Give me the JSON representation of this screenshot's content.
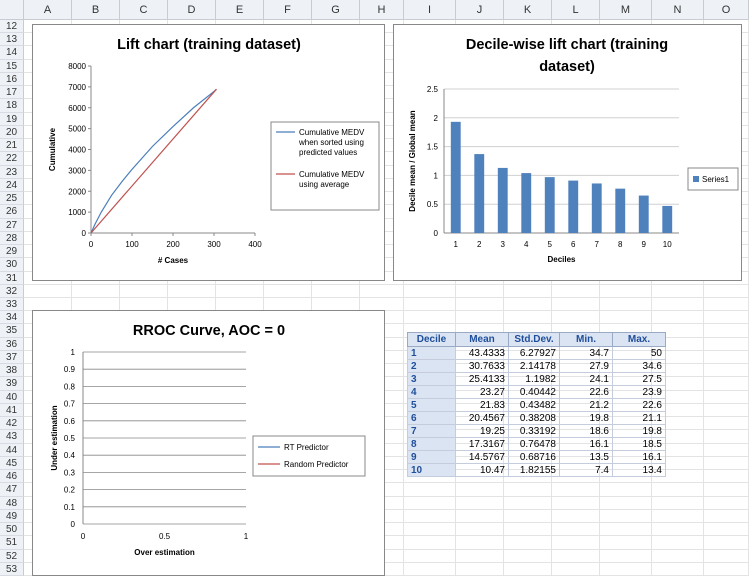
{
  "columns": [
    "A",
    "B",
    "C",
    "D",
    "E",
    "F",
    "G",
    "H",
    "I",
    "J",
    "K",
    "L",
    "M",
    "N",
    "O"
  ],
  "rows": [
    "12",
    "13",
    "14",
    "15",
    "16",
    "17",
    "18",
    "19",
    "20",
    "21",
    "22",
    "23",
    "24",
    "25",
    "26",
    "27",
    "28",
    "29",
    "30",
    "31",
    "32",
    "33",
    "34",
    "35",
    "36",
    "37",
    "38",
    "39",
    "40",
    "41",
    "42",
    "43",
    "44",
    "45",
    "46",
    "47",
    "48",
    "49",
    "50",
    "51",
    "52",
    "53"
  ],
  "colors": {
    "blue_series": "#4a7ebb",
    "red_series": "#c0504d",
    "bar": "#4f81bd",
    "table_header_bg": "#dbe4f3",
    "table_header_text": "#1f4e9a"
  },
  "chart_data": [
    {
      "type": "line",
      "title": "Lift chart (training dataset)",
      "xlabel": "# Cases",
      "ylabel": "Cumulative",
      "xlim": [
        0,
        400
      ],
      "ylim": [
        0,
        8000
      ],
      "xticks": [
        "0",
        "100",
        "200",
        "300",
        "400"
      ],
      "yticks": [
        "0",
        "1000",
        "2000",
        "3000",
        "4000",
        "5000",
        "6000",
        "7000",
        "8000"
      ],
      "legend_position": "right",
      "series": [
        {
          "name": "Cumulative MEDV when sorted using predicted values",
          "x": [
            0,
            10,
            25,
            50,
            75,
            100,
            150,
            200,
            250,
            300,
            306
          ],
          "y": [
            0,
            430,
            1000,
            1800,
            2450,
            3050,
            4150,
            5100,
            6000,
            6780,
            6890
          ]
        },
        {
          "name": "Cumulative MEDV using average",
          "x": [
            0,
            306
          ],
          "y": [
            0,
            6890
          ]
        }
      ]
    },
    {
      "type": "bar",
      "title": "Decile-wise lift chart (training dataset)",
      "xlabel": "Deciles",
      "ylabel": "Decile mean / Global mean",
      "ylim": [
        0,
        2.5
      ],
      "yticks": [
        "0",
        "0.5",
        "1",
        "1.5",
        "2",
        "2.5"
      ],
      "categories": [
        "1",
        "2",
        "3",
        "4",
        "5",
        "6",
        "7",
        "8",
        "9",
        "10"
      ],
      "legend_position": "right",
      "series": [
        {
          "name": "Series1",
          "values": [
            1.93,
            1.37,
            1.13,
            1.04,
            0.97,
            0.91,
            0.86,
            0.77,
            0.65,
            0.47
          ]
        }
      ]
    },
    {
      "type": "line",
      "title": "RROC Curve, AOC = 0",
      "xlabel": "Over estimation",
      "ylabel": "Under estimation",
      "xlim": [
        0,
        1
      ],
      "ylim": [
        0,
        1
      ],
      "xticks": [
        "0",
        "0.5",
        "1"
      ],
      "yticks": [
        "0",
        "0.1",
        "0.2",
        "0.3",
        "0.4",
        "0.5",
        "0.6",
        "0.7",
        "0.8",
        "0.9",
        "1"
      ],
      "legend_position": "right",
      "series": [
        {
          "name": "RT Predictor",
          "x": [],
          "y": []
        },
        {
          "name": "Random Predictor",
          "x": [],
          "y": []
        }
      ]
    },
    {
      "type": "table",
      "headers": [
        "Decile",
        "Mean",
        "Std.Dev.",
        "Min.",
        "Max."
      ],
      "rows": [
        [
          "1",
          "43.4333",
          "6.27927",
          "34.7",
          "50"
        ],
        [
          "2",
          "30.7633",
          "2.14178",
          "27.9",
          "34.6"
        ],
        [
          "3",
          "25.4133",
          "1.1982",
          "24.1",
          "27.5"
        ],
        [
          "4",
          "23.27",
          "0.40442",
          "22.6",
          "23.9"
        ],
        [
          "5",
          "21.83",
          "0.43482",
          "21.2",
          "22.6"
        ],
        [
          "6",
          "20.4567",
          "0.38208",
          "19.8",
          "21.1"
        ],
        [
          "7",
          "19.25",
          "0.33192",
          "18.6",
          "19.8"
        ],
        [
          "8",
          "17.3167",
          "0.76478",
          "16.1",
          "18.5"
        ],
        [
          "9",
          "14.5767",
          "0.68716",
          "13.5",
          "16.1"
        ],
        [
          "10",
          "10.47",
          "1.82155",
          "7.4",
          "13.4"
        ]
      ]
    }
  ]
}
